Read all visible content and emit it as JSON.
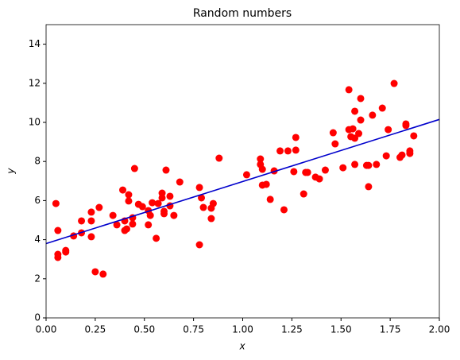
{
  "chart_data": {
    "type": "scatter",
    "title": "Random numbers",
    "x_label": "x",
    "y_label": "y",
    "xlim": [
      0,
      2
    ],
    "ylim": [
      0,
      15
    ],
    "xticks": [
      {
        "value": 0,
        "label": "0.00"
      },
      {
        "value": 0.25,
        "label": "0.25"
      },
      {
        "value": 0.5,
        "label": "0.50"
      },
      {
        "value": 0.75,
        "label": "0.75"
      },
      {
        "value": 1,
        "label": "1.00"
      },
      {
        "value": 1.25,
        "label": "1.25"
      },
      {
        "value": 1.5,
        "label": "1.50"
      },
      {
        "value": 1.75,
        "label": "1.75"
      },
      {
        "value": 2,
        "label": "2.00"
      }
    ],
    "yticks": [
      0,
      2,
      4,
      6,
      8,
      10,
      12,
      14
    ],
    "grid": false,
    "series": [
      {
        "type": "scatter",
        "color": "#ff0000",
        "x": [
          0.05,
          0.06,
          0.06,
          0.06,
          0.1,
          0.1,
          0.14,
          0.18,
          0.18,
          0.23,
          0.23,
          0.23,
          0.25,
          0.27,
          0.29,
          0.34,
          0.36,
          0.39,
          0.4,
          0.4,
          0.41,
          0.42,
          0.42,
          0.44,
          0.44,
          0.45,
          0.47,
          0.49,
          0.52,
          0.52,
          0.53,
          0.54,
          0.56,
          0.57,
          0.59,
          0.59,
          0.6,
          0.6,
          0.61,
          0.63,
          0.63,
          0.65,
          0.68,
          0.78,
          0.78,
          0.79,
          0.8,
          0.84,
          0.84,
          0.85,
          0.88,
          1.02,
          1.09,
          1.09,
          1.1,
          1.1,
          1.12,
          1.14,
          1.16,
          1.19,
          1.21,
          1.23,
          1.26,
          1.27,
          1.27,
          1.31,
          1.32,
          1.33,
          1.37,
          1.39,
          1.42,
          1.46,
          1.47,
          1.51,
          1.54,
          1.54,
          1.55,
          1.56,
          1.57,
          1.57,
          1.57,
          1.59,
          1.6,
          1.6,
          1.63,
          1.64,
          1.64,
          1.66,
          1.68,
          1.71,
          1.73,
          1.74,
          1.77,
          1.8,
          1.81,
          1.83,
          1.83,
          1.85,
          1.85,
          1.87
        ],
        "values": [
          5.85,
          4.47,
          3.25,
          3.09,
          3.37,
          3.45,
          4.19,
          4.96,
          4.35,
          5.41,
          4.96,
          4.15,
          2.36,
          5.65,
          2.24,
          5.24,
          4.76,
          6.54,
          4.96,
          4.47,
          4.55,
          6.3,
          5.98,
          5.12,
          4.8,
          7.64,
          5.81,
          5.69,
          5.49,
          4.76,
          5.24,
          5.89,
          4.07,
          5.85,
          6.38,
          6.14,
          5.45,
          5.33,
          7.56,
          6.22,
          5.73,
          5.24,
          6.95,
          6.67,
          3.74,
          6.14,
          5.65,
          5.08,
          5.61,
          5.85,
          8.17,
          7.32,
          7.85,
          8.13,
          6.79,
          7.6,
          6.83,
          6.06,
          7.52,
          8.54,
          5.53,
          8.54,
          7.48,
          9.23,
          8.58,
          6.34,
          7.44,
          7.44,
          7.2,
          7.11,
          7.56,
          9.47,
          8.9,
          7.68,
          11.67,
          9.63,
          9.27,
          9.67,
          9.19,
          10.57,
          7.85,
          9.43,
          11.22,
          10.12,
          7.8,
          6.71,
          7.8,
          10.37,
          7.85,
          10.73,
          8.29,
          9.63,
          11.99,
          8.21,
          8.33,
          9.84,
          9.92,
          8.54,
          8.41,
          9.31
        ]
      },
      {
        "type": "line",
        "color": "#0000cc",
        "x": [
          0,
          2
        ],
        "values": [
          3.8,
          10.15
        ]
      }
    ]
  }
}
